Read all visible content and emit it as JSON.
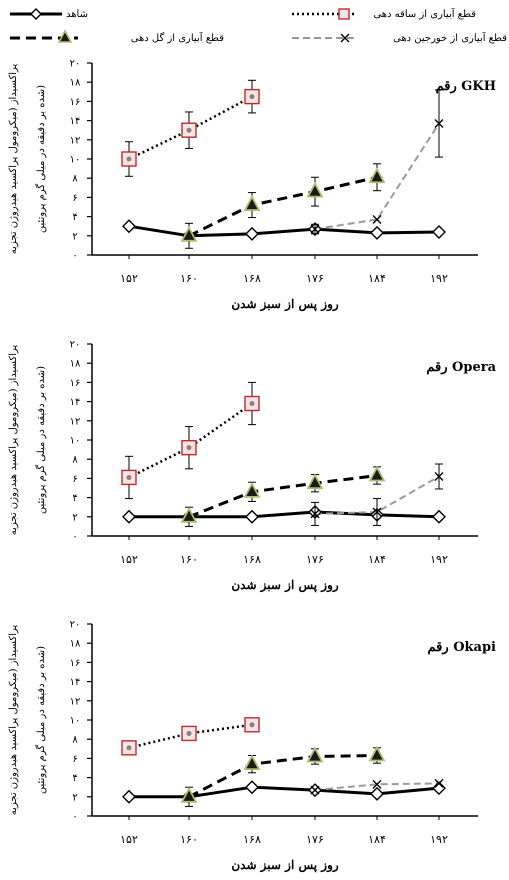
{
  "legend": {
    "control": "شاهد",
    "stem": "قطع آبیاری از ساقه دهی",
    "flower": "قطع آبیاری از گل دهی",
    "tuber": "قطع آبیاری از خورجین دهی"
  },
  "colors": {
    "control": "#000000",
    "stem": "#c0292b",
    "flower": "#000000",
    "flower_marker_fill": "#1a1a1a",
    "flower_marker_edge": "#a8c070",
    "tuber": "#9a9a9a"
  },
  "chart_data": [
    {
      "type": "line",
      "title": "رقم GKH",
      "xlabel": "روز پس از سبز شدن",
      "ylabel_line1": "پراکسیداز (میکرومول پراکسید هیدروژن تجزیه",
      "ylabel_line2": "شده بر دقیقه در میلی گرم پروتئین)",
      "x": [
        "۱۵۲",
        "۱۶۰",
        "۱۶۸",
        "۱۷۶",
        "۱۸۴",
        "۱۹۲"
      ],
      "y_ticks": [
        "۰",
        "۲",
        "۴",
        "۶",
        "۸",
        "۱۰",
        "۱۲",
        "۱۴",
        "۱۶",
        "۱۸",
        "۲۰"
      ],
      "ylim": [
        0,
        20
      ],
      "series": [
        {
          "name": "شاهد",
          "key": "control",
          "values": [
            3.0,
            2.0,
            2.2,
            2.7,
            2.3,
            2.4
          ],
          "errors": [
            0,
            0,
            0,
            0,
            0,
            0
          ]
        },
        {
          "name": "قطع آبیاری از ساقه دهی",
          "key": "stem",
          "values": [
            10.0,
            13.0,
            16.5,
            null,
            null,
            null
          ],
          "errors": [
            1.8,
            1.9,
            1.7,
            0,
            0,
            0
          ]
        },
        {
          "name": "قطع آبیاری از گل دهی",
          "key": "flower",
          "values": [
            null,
            2.0,
            5.2,
            6.6,
            8.1,
            null
          ],
          "errors": [
            0,
            1.3,
            1.3,
            1.5,
            1.4,
            0
          ]
        },
        {
          "name": "قطع آبیاری از خورجین دهی",
          "key": "tuber",
          "values": [
            null,
            null,
            null,
            2.7,
            3.7,
            13.7
          ],
          "errors": [
            0,
            0,
            0,
            0.5,
            0,
            3.5
          ]
        }
      ]
    },
    {
      "type": "line",
      "title": "رقم Opera",
      "xlabel": "روز پس از سبز شدن",
      "ylabel_line1": "پراکسیداز (میکرومول پراکسید هیدروژن تجزیه",
      "ylabel_line2": "شده بر دقیقه در میلی گرم پروتئین)",
      "x": [
        "۱۵۲",
        "۱۶۰",
        "۱۶۸",
        "۱۷۶",
        "۱۸۴",
        "۱۹۲"
      ],
      "y_ticks": [
        "۰",
        "۲",
        "۴",
        "۶",
        "۸",
        "۱۰",
        "۱۲",
        "۱۴",
        "۱۶",
        "۱۸",
        "۲۰"
      ],
      "ylim": [
        0,
        20
      ],
      "series": [
        {
          "name": "شاهد",
          "key": "control",
          "values": [
            2.0,
            2.0,
            2.0,
            2.5,
            2.2,
            2.0
          ],
          "errors": [
            0,
            0,
            0,
            0,
            0,
            0
          ]
        },
        {
          "name": "قطع آبیاری از ساقه دهی",
          "key": "stem",
          "values": [
            6.1,
            9.2,
            13.8,
            null,
            null,
            null
          ],
          "errors": [
            2.2,
            2.2,
            2.2,
            0,
            0,
            0
          ]
        },
        {
          "name": "قطع آبیاری از گل دهی",
          "key": "flower",
          "values": [
            null,
            2.0,
            4.6,
            5.5,
            6.3,
            null
          ],
          "errors": [
            0,
            1.0,
            1.0,
            0.9,
            0.9,
            0
          ]
        },
        {
          "name": "قطع آبیاری از خورجین دهی",
          "key": "tuber",
          "values": [
            null,
            null,
            null,
            2.3,
            2.5,
            6.2
          ],
          "errors": [
            0,
            0,
            0,
            1.2,
            1.4,
            1.3
          ]
        }
      ]
    },
    {
      "type": "line",
      "title": "رقم Okapi",
      "xlabel": "روز پس از سبز شدن",
      "ylabel_line1": "پراکسیداز (میکرومول پراکسید هیدروژن تجزیه",
      "ylabel_line2": "شده بر دقیقه در میلی گرم پروتئین)",
      "x": [
        "۱۵۲",
        "۱۶۰",
        "۱۶۸",
        "۱۷۶",
        "۱۸۴",
        "۱۹۲"
      ],
      "y_ticks": [
        "۰",
        "۲",
        "۴",
        "۶",
        "۸",
        "۱۰",
        "۱۲",
        "۱۴",
        "۱۶",
        "۱۸",
        "۲۰"
      ],
      "ylim": [
        0,
        20
      ],
      "series": [
        {
          "name": "شاهد",
          "key": "control",
          "values": [
            2.0,
            2.0,
            3.0,
            2.7,
            2.3,
            2.9
          ],
          "errors": [
            0,
            0,
            0,
            0,
            0,
            0
          ]
        },
        {
          "name": "قطع آبیاری از ساقه دهی",
          "key": "stem",
          "values": [
            7.1,
            8.6,
            9.5,
            null,
            null,
            null
          ],
          "errors": [
            0.4,
            0.4,
            0.4,
            0,
            0,
            0
          ]
        },
        {
          "name": "قطع آبیاری از گل دهی",
          "key": "flower",
          "values": [
            null,
            2.0,
            5.4,
            6.2,
            6.3,
            null
          ],
          "errors": [
            0,
            1.0,
            0.9,
            0.8,
            0.8,
            0
          ]
        },
        {
          "name": "قطع آبیاری از خورجین دهی",
          "key": "tuber",
          "values": [
            null,
            null,
            null,
            2.7,
            3.3,
            3.4
          ],
          "errors": [
            0,
            0,
            0,
            0,
            0,
            0
          ]
        }
      ]
    }
  ]
}
